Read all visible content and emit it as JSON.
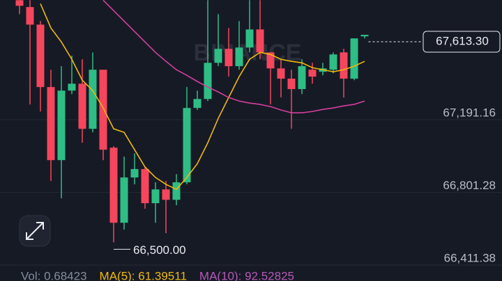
{
  "chart_data": {
    "type": "candlestick",
    "watermark": "BINANCE",
    "open": [
      67799,
      67762,
      67668,
      67333,
      66941,
      67314,
      67351,
      67109,
      67426,
      67008,
      66605,
      66848,
      66893,
      66710,
      66784,
      66728,
      66822,
      67221,
      67269,
      67463,
      67538,
      67445,
      67545,
      67642,
      67519,
      67433,
      67378,
      67322,
      67426,
      67415,
      67426,
      67519,
      67378,
      67605
    ],
    "high": [
      67799,
      67799,
      67687,
      67426,
      67445,
      67501,
      67482,
      67519,
      67426,
      67016,
      66960,
      66978,
      66904,
      66822,
      66829,
      66866,
      67333,
      67314,
      67799,
      67724,
      67650,
      67687,
      67799,
      67799,
      67519,
      67482,
      67426,
      67482,
      67463,
      67463,
      67519,
      67538,
      67594,
      67613.3
    ],
    "low": [
      67724,
      67240,
      67202,
      66829,
      66736,
      67295,
      67034,
      67090,
      66941,
      66500,
      66568,
      66811,
      66680,
      66605,
      66549,
      66699,
      66811,
      67210,
      67258,
      67445,
      67389,
      67426,
      67519,
      67482,
      67240,
      67277,
      67109,
      67295,
      67351,
      67396,
      67407,
      67277,
      67370,
      67594
    ],
    "close": [
      67769,
      67668,
      67333,
      66941,
      67314,
      67351,
      67109,
      67426,
      66997,
      66605,
      66848,
      66893,
      66710,
      66784,
      66728,
      66822,
      67221,
      67269,
      67463,
      67538,
      67445,
      67545,
      67642,
      67519,
      67433,
      67378,
      67322,
      67445,
      67389,
      67433,
      67508,
      67378,
      67594,
      67613.3
    ],
    "up_color": "#2ebd85",
    "down_color": "#f6465d",
    "series": [
      {
        "color": "#f0b90b",
        "values": [
          null,
          null,
          67780,
          67650,
          67575,
          67482,
          67370,
          67314,
          67221,
          67109,
          67090,
          66997,
          66904,
          66848,
          66811,
          66784,
          66848,
          66922,
          67034,
          67165,
          67277,
          67389,
          67482,
          67519,
          67508,
          67482,
          67471,
          67463,
          67437,
          67426,
          67415,
          67426,
          67445,
          67471
        ]
      },
      {
        "color": "#d43f9e",
        "values": [
          null,
          null,
          null,
          null,
          null,
          null,
          null,
          null,
          67799,
          67743,
          67687,
          67631,
          67575,
          67519,
          67471,
          67426,
          67396,
          67363,
          67333,
          67307,
          67277,
          67258,
          67247,
          67240,
          67228,
          67210,
          67195,
          67195,
          67202,
          67213,
          67221,
          67232,
          67240,
          67258
        ]
      }
    ],
    "ylim": [
      66300,
      67800
    ],
    "yticks": [
      {
        "value": 66411.38,
        "label": "66,411.38"
      },
      {
        "value": 66801.28,
        "label": "66,801.28"
      },
      {
        "value": 67191.16,
        "label": "67,191.16"
      }
    ],
    "grid": true,
    "last_price": {
      "value": 67613.3,
      "label": "67,613.30"
    },
    "low_annotation": {
      "value": 66500,
      "label": "66,500.00"
    },
    "footer_labels": [
      {
        "text": "Vol: 0.68423",
        "color": "#848e9c"
      },
      {
        "text": "MA(5): 61.39511",
        "color": "#f0b90b"
      },
      {
        "text": "MA(10): 92.52825",
        "color": "#b659b8"
      }
    ]
  }
}
